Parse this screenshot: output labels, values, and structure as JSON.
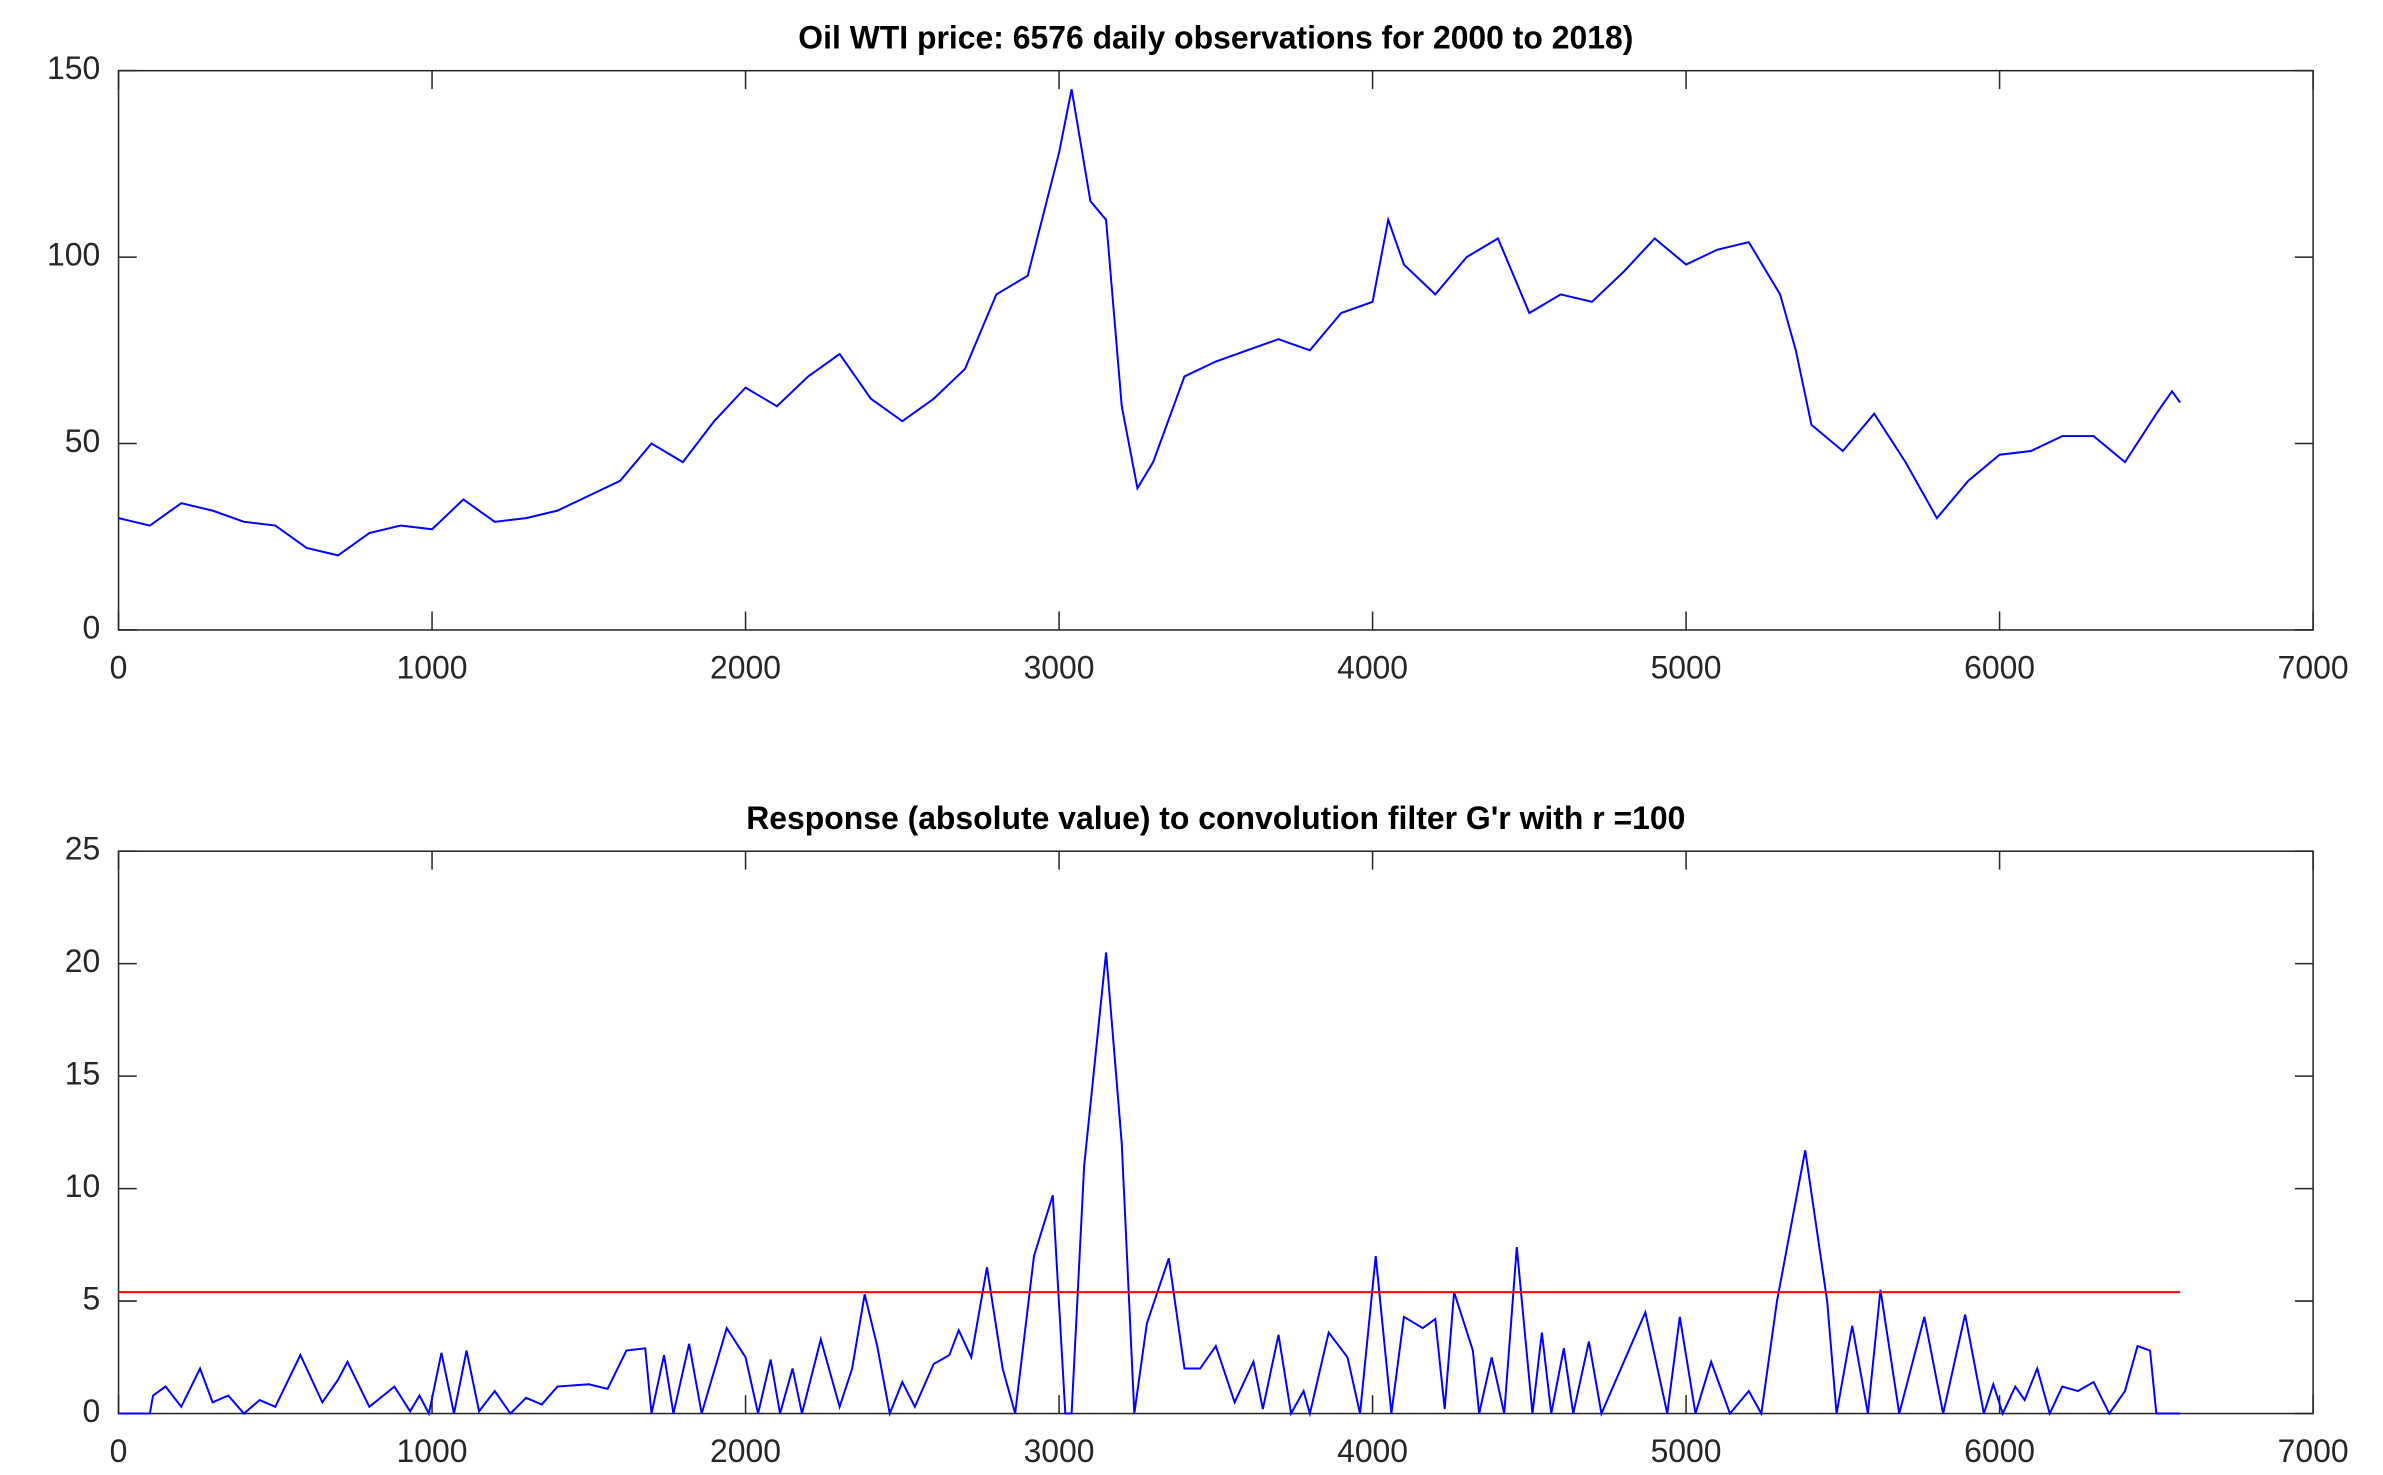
{
  "chart_data": [
    {
      "type": "line",
      "title": "Oil WTI price: 6576 daily observations for 2000 to 2018)",
      "x": [
        0,
        100,
        200,
        300,
        400,
        500,
        600,
        700,
        800,
        900,
        1000,
        1100,
        1200,
        1300,
        1400,
        1500,
        1600,
        1700,
        1800,
        1900,
        2000,
        2100,
        2200,
        2300,
        2400,
        2500,
        2600,
        2700,
        2800,
        2900,
        3000,
        3040,
        3100,
        3150,
        3200,
        3250,
        3300,
        3400,
        3500,
        3600,
        3700,
        3800,
        3900,
        4000,
        4050,
        4100,
        4200,
        4300,
        4400,
        4500,
        4600,
        4700,
        4800,
        4900,
        5000,
        5100,
        5200,
        5300,
        5350,
        5400,
        5500,
        5600,
        5700,
        5800,
        5900,
        6000,
        6100,
        6200,
        6300,
        6400,
        6500,
        6550,
        6576
      ],
      "values": [
        30,
        28,
        34,
        32,
        29,
        28,
        22,
        20,
        26,
        28,
        27,
        35,
        29,
        30,
        32,
        36,
        40,
        50,
        45,
        56,
        65,
        60,
        68,
        74,
        62,
        56,
        62,
        70,
        90,
        95,
        128,
        145,
        115,
        110,
        60,
        38,
        45,
        68,
        72,
        75,
        78,
        75,
        85,
        88,
        110,
        98,
        90,
        100,
        105,
        85,
        90,
        88,
        96,
        105,
        98,
        102,
        104,
        90,
        75,
        55,
        48,
        58,
        45,
        30,
        40,
        47,
        48,
        52,
        52,
        45,
        58,
        64,
        61
      ],
      "color": "#0000ff",
      "xlim": [
        0,
        7000
      ],
      "xticks": [
        0,
        1000,
        2000,
        3000,
        4000,
        5000,
        6000,
        7000
      ],
      "ylim": [
        0,
        150
      ],
      "yticks": [
        0,
        50,
        100,
        150
      ]
    },
    {
      "type": "line",
      "title": "Response (absolute value) to convolution filter G'r with r =100",
      "x": [
        0,
        100,
        110,
        150,
        200,
        260,
        300,
        350,
        400,
        450,
        500,
        580,
        650,
        700,
        730,
        800,
        880,
        930,
        960,
        990,
        1030,
        1070,
        1110,
        1150,
        1200,
        1250,
        1300,
        1350,
        1400,
        1500,
        1560,
        1620,
        1680,
        1700,
        1740,
        1770,
        1820,
        1860,
        1940,
        2000,
        2040,
        2080,
        2110,
        2150,
        2180,
        2240,
        2300,
        2340,
        2380,
        2420,
        2460,
        2500,
        2540,
        2600,
        2650,
        2680,
        2720,
        2770,
        2820,
        2860,
        2920,
        2980,
        3020,
        3040,
        3080,
        3150,
        3200,
        3240,
        3280,
        3350,
        3400,
        3450,
        3500,
        3560,
        3620,
        3650,
        3700,
        3740,
        3780,
        3800,
        3860,
        3920,
        3960,
        4010,
        4060,
        4100,
        4160,
        4200,
        4230,
        4260,
        4320,
        4340,
        4380,
        4420,
        4460,
        4510,
        4540,
        4570,
        4610,
        4640,
        4690,
        4730,
        4870,
        4940,
        4980,
        5030,
        5080,
        5140,
        5200,
        5240,
        5290,
        5380,
        5450,
        5480,
        5530,
        5580,
        5620,
        5680,
        5760,
        5820,
        5890,
        5950,
        5980,
        6010,
        6050,
        6080,
        6120,
        6160,
        6200,
        6250,
        6300,
        6350,
        6400,
        6440,
        6480,
        6500,
        6576
      ],
      "values": [
        0,
        0,
        0.8,
        1.2,
        0.3,
        2,
        0.5,
        0.8,
        0,
        0.6,
        0.3,
        2.6,
        0.5,
        1.5,
        2.3,
        0.3,
        1.2,
        0.1,
        0.8,
        0,
        2.7,
        0,
        2.8,
        0.1,
        1,
        0,
        0.7,
        0.4,
        1.2,
        1.3,
        1.1,
        2.8,
        2.9,
        0,
        2.6,
        0,
        3.1,
        0,
        3.8,
        2.5,
        0,
        2.4,
        0,
        2,
        0,
        3.3,
        0.3,
        2,
        5.3,
        3,
        0,
        1.4,
        0.3,
        2.2,
        2.6,
        3.7,
        2.5,
        6.5,
        2,
        0,
        7,
        9.7,
        0,
        0,
        11,
        20.5,
        12,
        0,
        4,
        6.9,
        2,
        2,
        3,
        0.5,
        2.3,
        0.2,
        3.5,
        0,
        1,
        0,
        3.6,
        2.5,
        0,
        7,
        0,
        4.3,
        3.8,
        4.2,
        0.2,
        5.4,
        2.8,
        0,
        2.5,
        0,
        7.4,
        0,
        3.6,
        0,
        2.9,
        0,
        3.2,
        0,
        4.5,
        0,
        4.3,
        0,
        2.3,
        0,
        1,
        0,
        5,
        11.7,
        5,
        0,
        3.9,
        0,
        5.5,
        0,
        4.3,
        0,
        4.4,
        0,
        1.3,
        0,
        1.2,
        0.6,
        2,
        0,
        1.2,
        1,
        1.4,
        0,
        1,
        3,
        2.8,
        0,
        0
      ],
      "color": "#0000ff",
      "threshold": {
        "value": 5.4,
        "x": [
          0,
          6576
        ],
        "color": "#ff0000"
      },
      "xlim": [
        0,
        7000
      ],
      "xticks": [
        0,
        1000,
        2000,
        3000,
        4000,
        5000,
        6000,
        7000
      ],
      "ylim": [
        0,
        25
      ],
      "yticks": [
        0,
        5,
        10,
        15,
        20,
        25
      ]
    }
  ]
}
